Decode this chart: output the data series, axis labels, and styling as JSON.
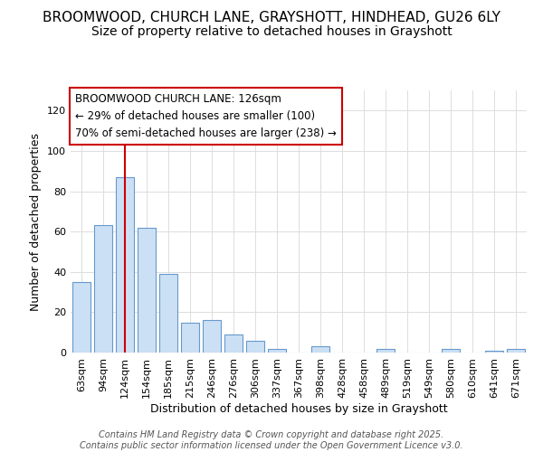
{
  "title_line1": "BROOMWOOD, CHURCH LANE, GRAYSHOTT, HINDHEAD, GU26 6LY",
  "title_line2": "Size of property relative to detached houses in Grayshott",
  "xlabel": "Distribution of detached houses by size in Grayshott",
  "ylabel": "Number of detached properties",
  "categories": [
    "63sqm",
    "94sqm",
    "124sqm",
    "154sqm",
    "185sqm",
    "215sqm",
    "246sqm",
    "276sqm",
    "306sqm",
    "337sqm",
    "367sqm",
    "398sqm",
    "428sqm",
    "458sqm",
    "489sqm",
    "519sqm",
    "549sqm",
    "580sqm",
    "610sqm",
    "641sqm",
    "671sqm"
  ],
  "values": [
    35,
    63,
    87,
    62,
    39,
    15,
    16,
    9,
    6,
    2,
    0,
    3,
    0,
    0,
    2,
    0,
    0,
    2,
    0,
    1,
    2
  ],
  "bar_color": "#cce0f5",
  "bar_edge_color": "#6699cc",
  "vline_color": "#cc0000",
  "vline_x_index": 2,
  "annotation_line1": "BROOMWOOD CHURCH LANE: 126sqm",
  "annotation_line2": "← 29% of detached houses are smaller (100)",
  "annotation_line3": "70% of semi-detached houses are larger (238) →",
  "annotation_box_facecolor": "#ffffff",
  "annotation_box_edgecolor": "#cc0000",
  "ylim": [
    0,
    130
  ],
  "yticks": [
    0,
    20,
    40,
    60,
    80,
    100,
    120
  ],
  "bg_color": "#ffffff",
  "plot_bg_color": "#ffffff",
  "grid_color": "#dddddd",
  "title_fontsize": 11,
  "subtitle_fontsize": 10,
  "axis_label_fontsize": 9,
  "tick_fontsize": 8,
  "annotation_fontsize": 8.5,
  "footer_fontsize": 7,
  "footer_line1": "Contains HM Land Registry data © Crown copyright and database right 2025.",
  "footer_line2": "Contains public sector information licensed under the Open Government Licence v3.0."
}
